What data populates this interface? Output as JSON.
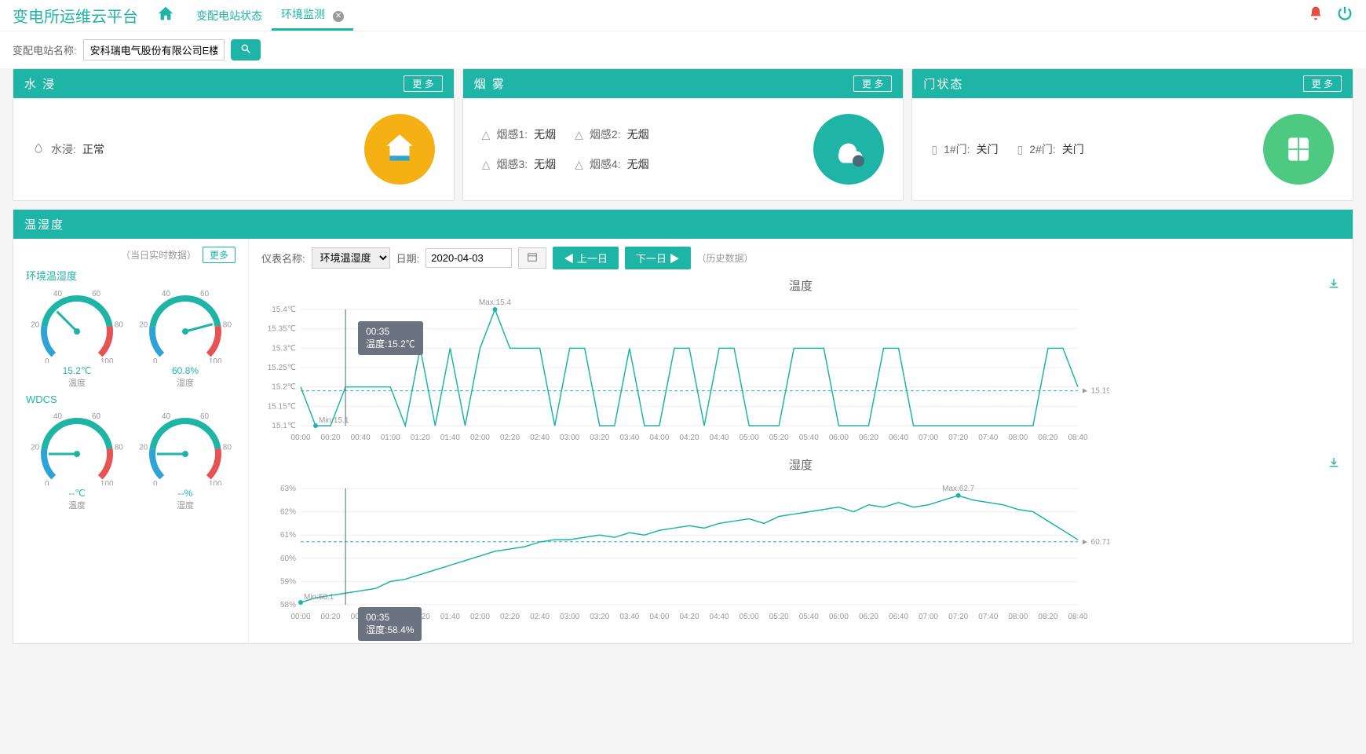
{
  "app": {
    "title": "变电所运维云平台"
  },
  "tabs": [
    {
      "label": "变配电站状态",
      "active": false
    },
    {
      "label": "环境监测",
      "active": true,
      "closable": true
    }
  ],
  "filter": {
    "label": "变配电站名称:",
    "value": "安科瑞电气股份有限公司E楼"
  },
  "colors": {
    "primary": "#1eb5a6",
    "accent_red": "#e74c3c",
    "gauge_blue": "#2ea3d6",
    "gauge_green": "#1eb5a6",
    "gauge_red": "#e55353",
    "chart_line": "#1eb5a6",
    "chart_grid": "#eeeeee",
    "chart_dash": "#1eb5a6",
    "tooltip_bg": "#6b7280"
  },
  "cards": {
    "water": {
      "title": "水 浸",
      "more": "更 多",
      "items": [
        {
          "label": "水浸:",
          "value": "正常"
        }
      ]
    },
    "smoke": {
      "title": "烟 雾",
      "more": "更 多",
      "items": [
        {
          "label": "烟感1:",
          "value": "无烟"
        },
        {
          "label": "烟感2:",
          "value": "无烟"
        },
        {
          "label": "烟感3:",
          "value": "无烟"
        },
        {
          "label": "烟感4:",
          "value": "无烟"
        }
      ]
    },
    "door": {
      "title": "门状态",
      "more": "更 多",
      "items": [
        {
          "label": "1#门:",
          "value": "关门"
        },
        {
          "label": "2#门:",
          "value": "关门"
        }
      ]
    }
  },
  "th": {
    "header": "温湿度",
    "realtime_label": "（当日实时数据）",
    "more": "更多",
    "groups": [
      {
        "name": "环境温湿度",
        "gauges": [
          {
            "value": "15.2℃",
            "label": "温度",
            "needle_angle": -135,
            "ticks": [
              "0",
              "20",
              "40",
              "60",
              "80",
              "100"
            ]
          },
          {
            "value": "60.8%",
            "label": "湿度",
            "needle_angle": -15,
            "ticks": [
              "0",
              "20",
              "40",
              "60",
              "80",
              "100"
            ]
          }
        ]
      },
      {
        "name": "WDCS",
        "gauges": [
          {
            "value": "--℃",
            "label": "温度",
            "needle_angle": -180,
            "ticks": [
              "0",
              "20",
              "40",
              "60",
              "80",
              "100"
            ]
          },
          {
            "value": "--%",
            "label": "湿度",
            "needle_angle": -180,
            "ticks": [
              "0",
              "20",
              "40",
              "60",
              "80",
              "100"
            ]
          }
        ]
      }
    ],
    "controls": {
      "meter_label": "仪表名称:",
      "meter_value": "环境温湿度",
      "date_label": "日期:",
      "date_value": "2020-04-03",
      "prev": "上一日",
      "next": "下一日",
      "history": "（历史数据）"
    },
    "x_ticks": [
      "00:00",
      "00:20",
      "00:40",
      "01:00",
      "01:20",
      "01:40",
      "02:00",
      "02:20",
      "02:40",
      "03:00",
      "03:20",
      "03:40",
      "04:00",
      "04:20",
      "04:40",
      "05:00",
      "05:20",
      "05:40",
      "06:00",
      "06:20",
      "06:40",
      "07:00",
      "07:20",
      "07:40",
      "08:00",
      "08:20",
      "08:40"
    ],
    "temp_chart": {
      "title": "温度",
      "type": "line",
      "y_ticks": [
        "15.1℃",
        "15.15℃",
        "15.2℃",
        "15.25℃",
        "15.3℃",
        "15.35℃",
        "15.4℃"
      ],
      "ylim": [
        15.1,
        15.4
      ],
      "avg": 15.19,
      "avg_label": "15.19",
      "max": 15.4,
      "max_label": "Max:15.4",
      "min": 15.1,
      "min_label": "Min:15.1",
      "cursor_x": 3,
      "tooltip": {
        "time": "00:35",
        "text": "温度:15.2℃"
      },
      "values": [
        15.2,
        15.1,
        15.1,
        15.2,
        15.2,
        15.2,
        15.2,
        15.1,
        15.3,
        15.1,
        15.3,
        15.1,
        15.3,
        15.4,
        15.3,
        15.3,
        15.3,
        15.1,
        15.3,
        15.3,
        15.1,
        15.1,
        15.3,
        15.1,
        15.1,
        15.3,
        15.3,
        15.1,
        15.3,
        15.3,
        15.1,
        15.1,
        15.1,
        15.3,
        15.3,
        15.3,
        15.1,
        15.1,
        15.1,
        15.3,
        15.3,
        15.1,
        15.1,
        15.1,
        15.1,
        15.1,
        15.1,
        15.1,
        15.1,
        15.1,
        15.3,
        15.3,
        15.2
      ]
    },
    "hum_chart": {
      "title": "湿度",
      "type": "line",
      "y_ticks": [
        "58%",
        "59%",
        "60%",
        "61%",
        "62%",
        "63%"
      ],
      "ylim": [
        58,
        63
      ],
      "avg": 60.71,
      "avg_label": "60.71",
      "max": 62.7,
      "max_label": "Max:62.7",
      "min": 58.1,
      "min_label": "Min:58.1",
      "cursor_x": 3,
      "tooltip": {
        "time": "00:35",
        "text": "湿度:58.4%"
      },
      "values": [
        58.1,
        58.3,
        58.4,
        58.5,
        58.6,
        58.7,
        59.0,
        59.1,
        59.3,
        59.5,
        59.7,
        59.9,
        60.1,
        60.3,
        60.4,
        60.5,
        60.7,
        60.8,
        60.8,
        60.9,
        61.0,
        60.9,
        61.1,
        61.0,
        61.2,
        61.3,
        61.4,
        61.3,
        61.5,
        61.6,
        61.7,
        61.5,
        61.8,
        61.9,
        62.0,
        62.1,
        62.2,
        62.0,
        62.3,
        62.2,
        62.4,
        62.2,
        62.3,
        62.5,
        62.7,
        62.5,
        62.4,
        62.3,
        62.1,
        62.0,
        61.6,
        61.2,
        60.8
      ]
    }
  }
}
